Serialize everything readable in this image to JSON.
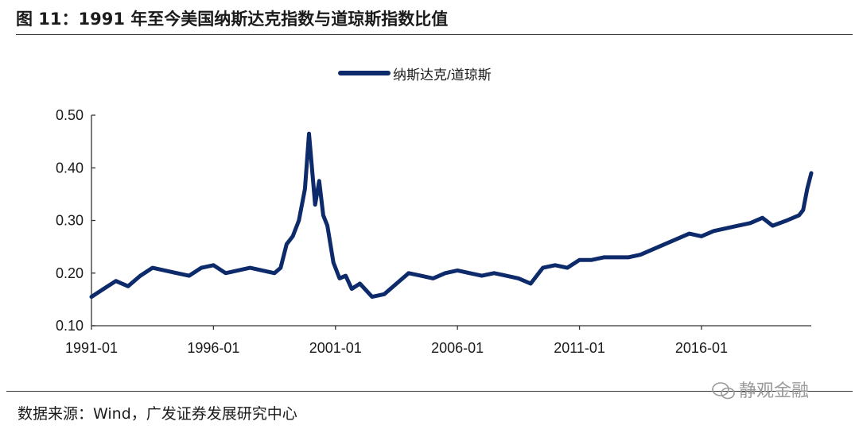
{
  "header": {
    "figure_label": "图 11：",
    "title": "1991 年至今美国纳斯达克指数与道琼斯指数比值"
  },
  "footer": {
    "source_label": "数据来源：",
    "source_text": "Wind，广发证券发展研究中心"
  },
  "watermark": {
    "text": "静观金融",
    "icon": "wechat-icon"
  },
  "chart_data": {
    "type": "line",
    "title": "",
    "xlabel": "",
    "ylabel": "",
    "legend_position": "top-center",
    "grid": false,
    "ylim": [
      0.1,
      0.5
    ],
    "yticks": [
      "0.10",
      "0.20",
      "0.30",
      "0.40",
      "0.50"
    ],
    "xticks": [
      "1991-01",
      "1996-01",
      "2001-01",
      "2006-01",
      "2011-01",
      "2016-01"
    ],
    "xlim": [
      "1991-01",
      "2020-07"
    ],
    "series": [
      {
        "name": "纳斯达克/道琼斯",
        "color": "#0d2a6b",
        "x": [
          "1991-01",
          "1991-07",
          "1992-01",
          "1992-07",
          "1993-01",
          "1993-07",
          "1994-01",
          "1994-07",
          "1995-01",
          "1995-07",
          "1996-01",
          "1996-07",
          "1997-01",
          "1997-07",
          "1998-01",
          "1998-07",
          "1998-10",
          "1999-01",
          "1999-04",
          "1999-07",
          "1999-10",
          "1999-12",
          "2000-03",
          "2000-05",
          "2000-07",
          "2000-09",
          "2000-12",
          "2001-03",
          "2001-06",
          "2001-09",
          "2002-01",
          "2002-07",
          "2003-01",
          "2003-07",
          "2004-01",
          "2004-07",
          "2005-01",
          "2005-07",
          "2006-01",
          "2006-07",
          "2007-01",
          "2007-07",
          "2008-01",
          "2008-07",
          "2009-01",
          "2009-07",
          "2010-01",
          "2010-07",
          "2011-01",
          "2011-07",
          "2012-01",
          "2012-07",
          "2013-01",
          "2013-07",
          "2014-01",
          "2014-07",
          "2015-01",
          "2015-07",
          "2016-01",
          "2016-07",
          "2017-01",
          "2017-07",
          "2018-01",
          "2018-07",
          "2018-12",
          "2019-07",
          "2020-01",
          "2020-03",
          "2020-05",
          "2020-07"
        ],
        "values": [
          0.155,
          0.17,
          0.185,
          0.175,
          0.195,
          0.21,
          0.205,
          0.2,
          0.195,
          0.21,
          0.215,
          0.2,
          0.205,
          0.21,
          0.205,
          0.2,
          0.21,
          0.255,
          0.27,
          0.3,
          0.36,
          0.465,
          0.33,
          0.375,
          0.31,
          0.29,
          0.22,
          0.19,
          0.195,
          0.17,
          0.18,
          0.155,
          0.16,
          0.18,
          0.2,
          0.195,
          0.19,
          0.2,
          0.205,
          0.2,
          0.195,
          0.2,
          0.195,
          0.19,
          0.18,
          0.21,
          0.215,
          0.21,
          0.225,
          0.225,
          0.23,
          0.23,
          0.23,
          0.235,
          0.245,
          0.255,
          0.265,
          0.275,
          0.27,
          0.28,
          0.285,
          0.29,
          0.295,
          0.305,
          0.29,
          0.3,
          0.31,
          0.32,
          0.36,
          0.39
        ]
      }
    ]
  }
}
